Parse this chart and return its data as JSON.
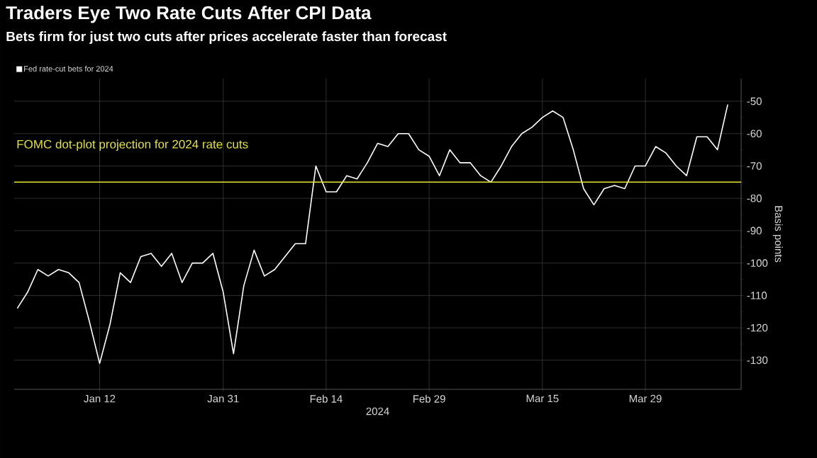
{
  "chart_data": {
    "type": "line",
    "title": "Traders Eye Two Rate Cuts After CPI Data",
    "subtitle": "Bets firm for just two cuts after prices accelerate faster than forecast",
    "xlabel": "2024",
    "ylabel": "Basis points",
    "categories": [
      null,
      null,
      null,
      null,
      null,
      null,
      null,
      null,
      "Jan 12",
      null,
      null,
      null,
      null,
      null,
      null,
      null,
      null,
      null,
      null,
      null,
      "Jan 31",
      null,
      null,
      null,
      null,
      null,
      null,
      null,
      null,
      null,
      "Feb 14",
      null,
      null,
      null,
      null,
      null,
      null,
      null,
      null,
      null,
      "Feb 29",
      null,
      null,
      null,
      null,
      null,
      null,
      null,
      null,
      null,
      null,
      "Mar 15",
      null,
      null,
      null,
      null,
      null,
      null,
      null,
      null,
      null,
      "Mar 29",
      null,
      null,
      null,
      null,
      null,
      null,
      null,
      null
    ],
    "series": [
      {
        "name": "Fed rate-cut bets for 2024",
        "color": "#ffffff",
        "values": [
          -114,
          -109,
          -102,
          -104,
          -102,
          -103,
          -106,
          -118,
          -131,
          -119,
          -103,
          -106,
          -98,
          -97,
          -101,
          -97,
          -106,
          -100,
          -100,
          -97,
          -109,
          -128,
          -107,
          -96,
          -104,
          -102,
          -98,
          -94,
          -94,
          -70,
          -78,
          -78,
          -73,
          -74,
          -69,
          -63,
          -64,
          -60,
          -60,
          -65,
          -67,
          -73,
          -65,
          -69,
          -69,
          -73,
          -75,
          -70,
          -64,
          -60,
          -58,
          -55,
          -53,
          -55,
          -65,
          -77,
          -82,
          -77,
          -76,
          -77,
          -70,
          -70,
          -64,
          -66,
          -70,
          -73,
          -61,
          -61,
          -65,
          -51
        ]
      }
    ],
    "ylim": [
      -139,
      -43
    ],
    "yticks": [
      -50,
      -60,
      -70,
      -80,
      -90,
      -100,
      -110,
      -120,
      -130
    ],
    "ref_lines": [
      {
        "axis": "y",
        "value": -75,
        "label": "FOMC dot-plot projection for 2024 rate cuts",
        "color": "#e6e632"
      }
    ],
    "grid": true,
    "legend": "top left",
    "marker": "none",
    "line_style": "solid"
  }
}
